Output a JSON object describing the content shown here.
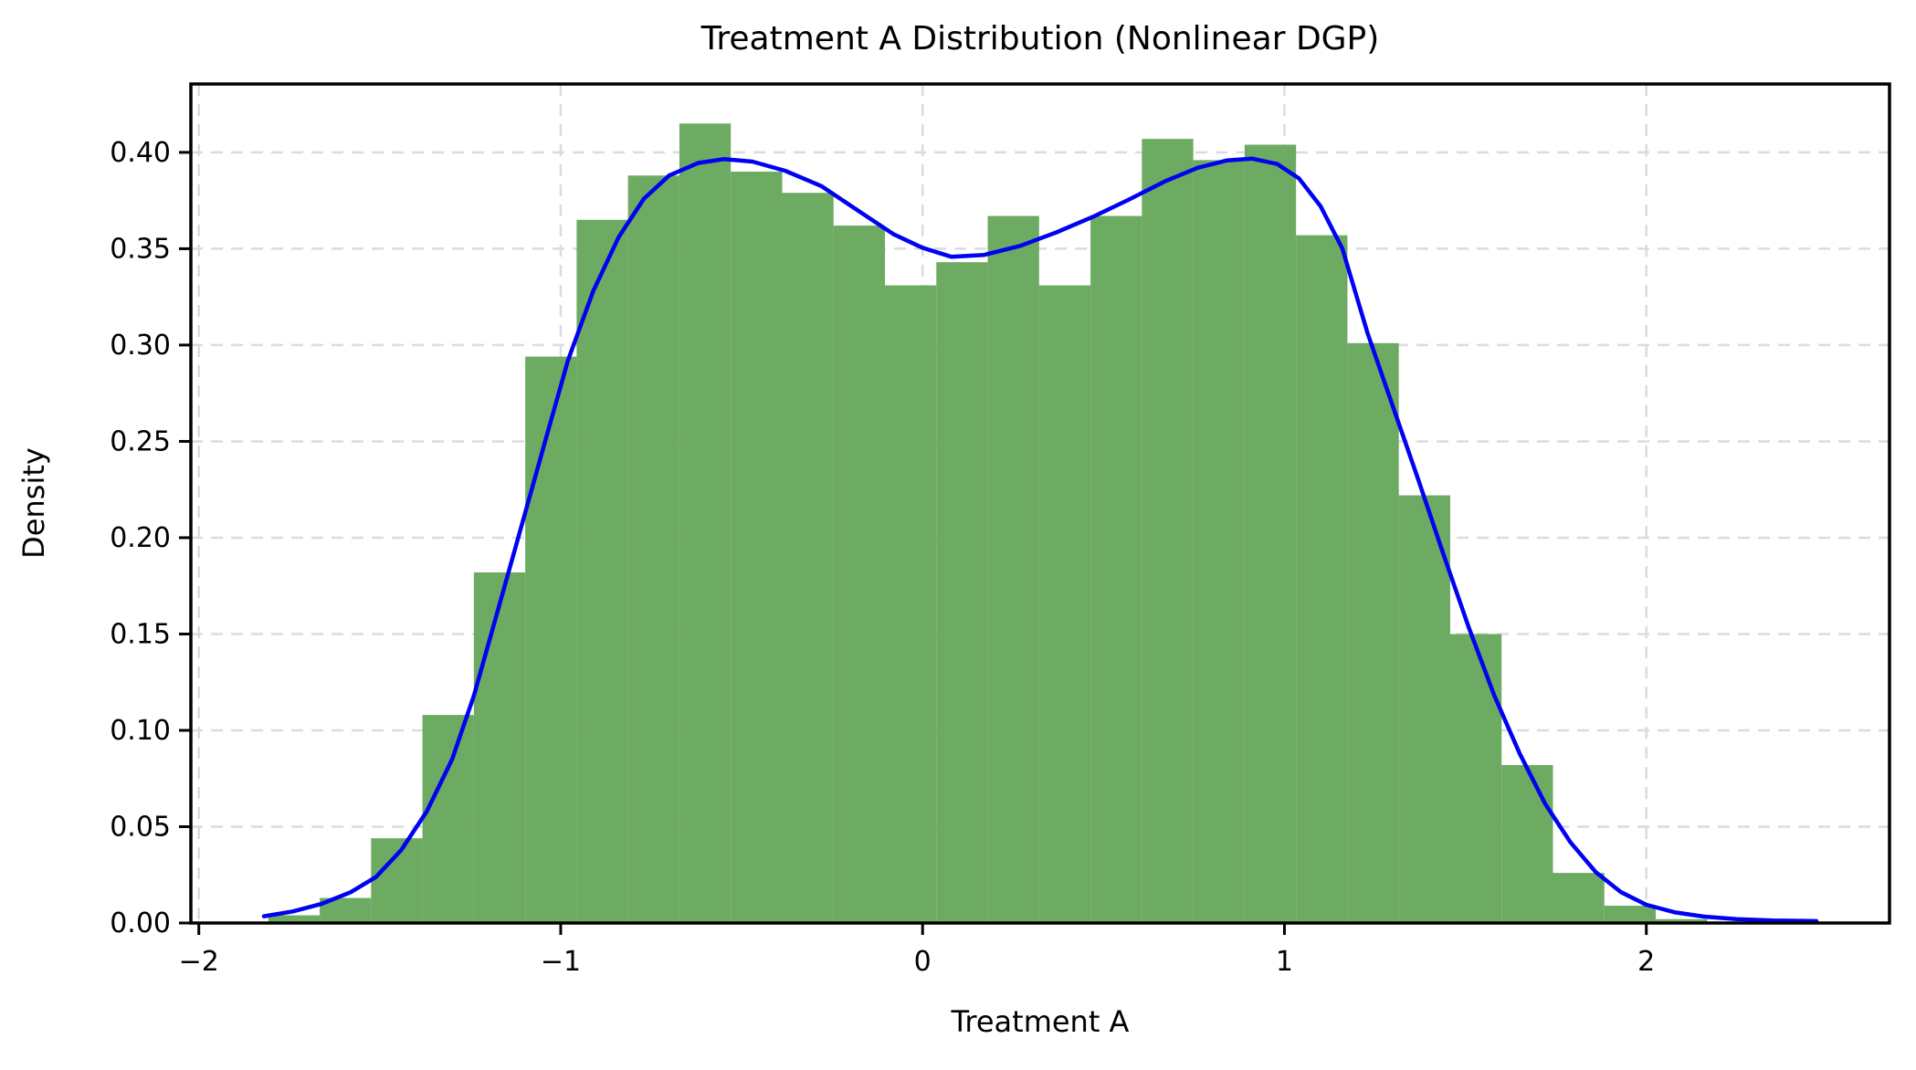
{
  "figure": {
    "title": "Treatment A Distribution (Nonlinear DGP)",
    "xlabel": "Treatment A",
    "ylabel": "Density"
  },
  "chart_data": {
    "type": "histogram_kde",
    "title": "Treatment A Distribution (Nonlinear DGP)",
    "xlabel": "Treatment A",
    "ylabel": "Density",
    "xlim": [
      -2.022,
      2.672
    ],
    "ylim": [
      0,
      0.4355
    ],
    "grid": {
      "visible": true,
      "style": "dashed",
      "color": "#dcdcdc"
    },
    "legend": "none",
    "x_ticks": [
      {
        "label": "−2",
        "value": -2
      },
      {
        "label": "−1",
        "value": -1
      },
      {
        "label": "0",
        "value": 0
      },
      {
        "label": "1",
        "value": 1
      },
      {
        "label": "2",
        "value": 2
      }
    ],
    "y_ticks": [
      {
        "label": "0.00",
        "value": 0.0
      },
      {
        "label": "0.05",
        "value": 0.05
      },
      {
        "label": "0.10",
        "value": 0.1
      },
      {
        "label": "0.15",
        "value": 0.15
      },
      {
        "label": "0.20",
        "value": 0.2
      },
      {
        "label": "0.25",
        "value": 0.25
      },
      {
        "label": "0.30",
        "value": 0.3
      },
      {
        "label": "0.35",
        "value": 0.35
      },
      {
        "label": "0.40",
        "value": 0.4
      }
    ],
    "histogram": {
      "series_name": "Treatment A histogram",
      "color": "#6dab63",
      "bin_start": -1.808,
      "bin_width": 0.142,
      "densities": [
        0.004,
        0.013,
        0.044,
        0.108,
        0.182,
        0.294,
        0.365,
        0.388,
        0.415,
        0.39,
        0.379,
        0.362,
        0.331,
        0.343,
        0.367,
        0.331,
        0.367,
        0.407,
        0.396,
        0.404,
        0.357,
        0.301,
        0.222,
        0.15,
        0.082,
        0.026,
        0.009,
        0.002
      ]
    },
    "kde": {
      "series_name": "KDE",
      "color": "#0000f2",
      "line_width": 4.5,
      "points": [
        [
          -1.82,
          0.0035
        ],
        [
          -1.74,
          0.006
        ],
        [
          -1.66,
          0.01
        ],
        [
          -1.58,
          0.016
        ],
        [
          -1.51,
          0.024
        ],
        [
          -1.44,
          0.038
        ],
        [
          -1.37,
          0.058
        ],
        [
          -1.3,
          0.085
        ],
        [
          -1.24,
          0.118
        ],
        [
          -1.18,
          0.158
        ],
        [
          -1.11,
          0.205
        ],
        [
          -1.04,
          0.252
        ],
        [
          -0.98,
          0.292
        ],
        [
          -0.91,
          0.328
        ],
        [
          -0.84,
          0.356
        ],
        [
          -0.77,
          0.376
        ],
        [
          -0.7,
          0.388
        ],
        [
          -0.62,
          0.3945
        ],
        [
          -0.55,
          0.3965
        ],
        [
          -0.47,
          0.3952
        ],
        [
          -0.38,
          0.3905
        ],
        [
          -0.28,
          0.3825
        ],
        [
          -0.18,
          0.37
        ],
        [
          -0.08,
          0.3575
        ],
        [
          0.0,
          0.3505
        ],
        [
          0.08,
          0.3458
        ],
        [
          0.17,
          0.3468
        ],
        [
          0.27,
          0.3515
        ],
        [
          0.37,
          0.3585
        ],
        [
          0.47,
          0.3665
        ],
        [
          0.57,
          0.3755
        ],
        [
          0.67,
          0.385
        ],
        [
          0.76,
          0.392
        ],
        [
          0.84,
          0.3958
        ],
        [
          0.91,
          0.3968
        ],
        [
          0.98,
          0.394
        ],
        [
          1.04,
          0.3865
        ],
        [
          1.1,
          0.372
        ],
        [
          1.16,
          0.35
        ],
        [
          1.23,
          0.306
        ],
        [
          1.3,
          0.268
        ],
        [
          1.37,
          0.23
        ],
        [
          1.44,
          0.191
        ],
        [
          1.51,
          0.153
        ],
        [
          1.58,
          0.118
        ],
        [
          1.65,
          0.088
        ],
        [
          1.72,
          0.062
        ],
        [
          1.79,
          0.042
        ],
        [
          1.86,
          0.0265
        ],
        [
          1.93,
          0.016
        ],
        [
          2.0,
          0.0095
        ],
        [
          2.08,
          0.0055
        ],
        [
          2.16,
          0.0033
        ],
        [
          2.25,
          0.002
        ],
        [
          2.35,
          0.0013
        ],
        [
          2.47,
          0.001
        ]
      ]
    }
  }
}
